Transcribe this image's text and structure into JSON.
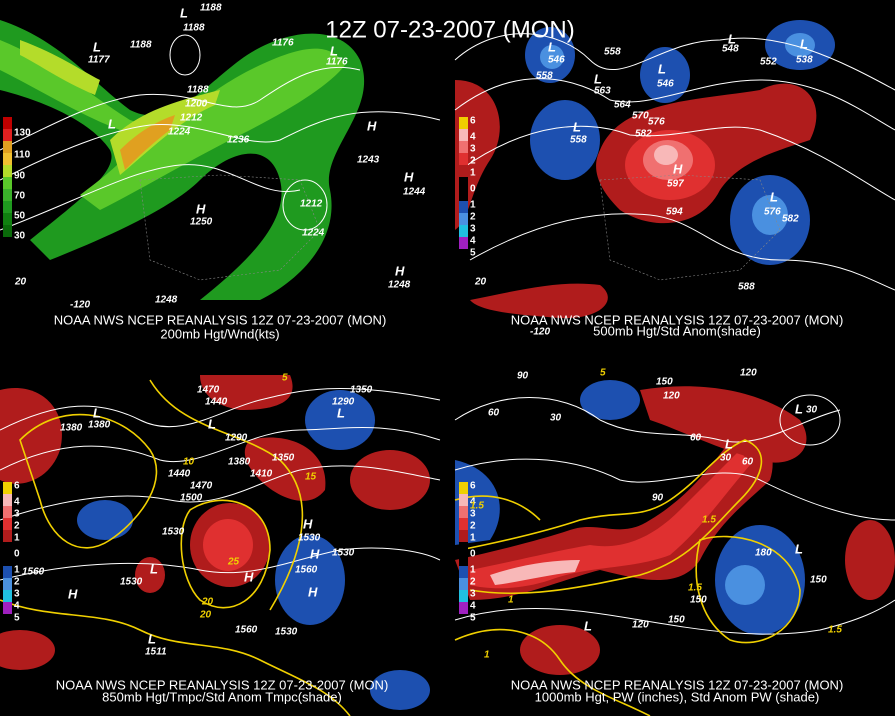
{
  "title": "12Z 07-23-2007 (MON)",
  "panels": [
    {
      "caption": "NOAA NWS NCEP REANALYSIS 12Z 07-23-2007 (MON)",
      "subcaption": "200mb Hgt/Wnd(kts)",
      "colorbar": [
        "130",
        "110",
        "90",
        "70",
        "50",
        "30"
      ],
      "labels": [
        "1188",
        "L",
        "1188",
        "L",
        "1177",
        "1188",
        "1176",
        "L",
        "1176",
        "1200",
        "1212",
        "1224",
        "1188",
        "L",
        "1236",
        "H",
        "1243",
        "H",
        "1244",
        "H",
        "1250",
        "1212",
        "1224",
        "1248",
        "H",
        "1248",
        "-120",
        "20"
      ]
    },
    {
      "caption": "NOAA NWS NCEP REANALYSIS 12Z 07-23-2007 (MON)",
      "subcaption": "500mb Hgt/Std Anom(shade)",
      "colorbar": [
        "6",
        "4",
        "3",
        "2",
        "1",
        "0",
        "1",
        "2",
        "3",
        "4",
        "5"
      ],
      "labels": [
        "L",
        "546",
        "558",
        "558",
        "L",
        "563",
        "L",
        "546",
        "L",
        "548",
        "552",
        "L",
        "538",
        "564",
        "570",
        "576",
        "582",
        "L",
        "558",
        "H",
        "597",
        "594",
        "L",
        "576",
        "582",
        "588",
        "-120",
        "20"
      ]
    },
    {
      "caption": "NOAA NWS NCEP REANALYSIS 12Z 07-23-2007 (MON)",
      "subcaption": "850mb Hgt/Tmpc/Std Anom Tmpc(shade)",
      "colorbar": [
        "6",
        "4",
        "3",
        "2",
        "1",
        "0",
        "1",
        "2",
        "3",
        "4",
        "5"
      ],
      "labels": [
        "1470",
        "1440",
        "5",
        "1350",
        "1290",
        "L",
        "1380",
        "L",
        "1380",
        "L",
        "1290",
        "1380",
        "1350",
        "1410",
        "15",
        "1440",
        "1470",
        "1500",
        "10",
        "1530",
        "25",
        "20",
        "H",
        "1530",
        "H",
        "1560",
        "1560",
        "1530",
        "L",
        "1560",
        "H",
        "1530",
        "20",
        "H",
        "1530",
        "L",
        "1511",
        "H"
      ]
    },
    {
      "caption": "NOAA NWS NCEP REANALYSIS 12Z 07-23-2007 (MON)",
      "subcaption": "1000mb Hgt, PW (inches), Std Anom PW (shade)",
      "colorbar": [
        "6",
        "4",
        "3",
        "2",
        "1",
        "0",
        "1",
        "2",
        "3",
        "4",
        "5"
      ],
      "labels": [
        "90",
        "60",
        "30",
        "5",
        "150",
        "120",
        "120",
        "L",
        "30",
        "60",
        "L",
        "30",
        "60",
        "1.5",
        "90",
        "1.5",
        "180",
        "L",
        "150",
        "150",
        "120",
        "150",
        "1",
        "1.5",
        "1",
        "L",
        "1.5"
      ]
    }
  ]
}
